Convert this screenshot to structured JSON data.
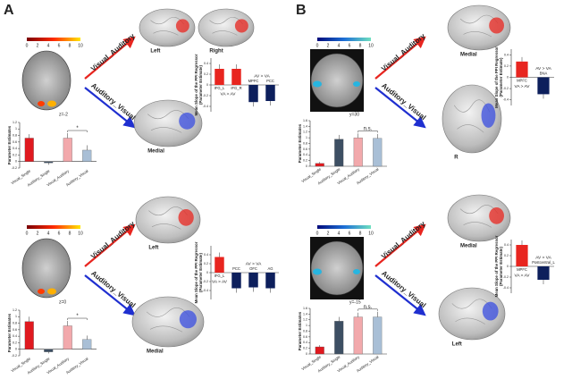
{
  "figure": {
    "panels": [
      "A",
      "B"
    ],
    "sections": [
      {
        "colorbar_ticks": [
          0,
          2,
          4,
          6,
          8,
          10
        ],
        "slice": "z=-2",
        "arrows": [
          "Visual_Auditory",
          "Auditory_Visual"
        ],
        "views": [
          "Left",
          "Right",
          "Medial"
        ]
      },
      {
        "colorbar_ticks": [
          0,
          2,
          4,
          6,
          8,
          10
        ],
        "slice": "z=0",
        "arrows": [
          "Visual_Auditory",
          "Auditory_Visual"
        ],
        "views": [
          "Left",
          "Medial"
        ]
      },
      {
        "colorbar_ticks": [
          0,
          2,
          4,
          6,
          8,
          10
        ],
        "slice": "y=30",
        "arrows": [
          "Visual_Auditory",
          "Auditory_Visual"
        ],
        "views": [
          "Medial",
          "R"
        ]
      },
      {
        "colorbar_ticks": [
          0,
          2,
          4,
          6,
          8,
          10
        ],
        "slice": "y=-15",
        "arrows": [
          "Visual_Auditory",
          "Auditory_Visual"
        ],
        "views": [
          "Medial",
          "Left"
        ]
      }
    ]
  },
  "chart_data": [
    {
      "type": "bar",
      "ylabel": [
        "Parameter Estimates"
      ],
      "categories": [
        "Visual_Single",
        "Auditory_Single",
        "Visual_Auditory",
        "Auditory_Visual"
      ],
      "values": [
        0.72,
        -0.04,
        0.72,
        0.35
      ],
      "errors": [
        0.12,
        0.06,
        0.15,
        0.15
      ],
      "colors": [
        "#e0191f",
        "#3d4f63",
        "#f2a9ac",
        "#a9bfd6"
      ],
      "ylim": [
        -0.2,
        1.2
      ],
      "yticks": [
        -0.2,
        0,
        0.2,
        0.4,
        0.6,
        0.8,
        1,
        1.2
      ],
      "annotation": "*"
    },
    {
      "type": "grouped",
      "ylabel": [
        "Mean Slope of the PPI Regressor",
        "(Parameter Estimate)"
      ],
      "categories": [
        "IFG_L",
        "IFG_R",
        "MPFC",
        "PCC"
      ],
      "series": [
        {
          "name": "VA > AV",
          "color": "#e8251f",
          "values": [
            0.3,
            0.3,
            null,
            null
          ]
        },
        {
          "name": "AV > VA",
          "color": "#0d1f5c",
          "values": [
            null,
            null,
            -0.32,
            -0.3
          ]
        }
      ],
      "ylim": [
        -0.5,
        0.5
      ],
      "yticks": [
        -0.4,
        -0.2,
        0,
        0.2,
        0.4
      ]
    },
    {
      "type": "bar",
      "ylabel": [
        "Parameter Estimates"
      ],
      "categories": [
        "Visual_Single",
        "Auditory_Single",
        "Visual_Auditory",
        "Auditory_Visual"
      ],
      "values": [
        0.85,
        -0.08,
        0.72,
        0.3
      ],
      "errors": [
        0.15,
        0.05,
        0.15,
        0.12
      ],
      "colors": [
        "#e0191f",
        "#3d4f63",
        "#f2a9ac",
        "#a9bfd6"
      ],
      "ylim": [
        -0.2,
        1.2
      ],
      "yticks": [
        -0.2,
        0,
        0.2,
        0.4,
        0.6,
        0.8,
        1,
        1.2
      ],
      "annotation": "*"
    },
    {
      "type": "grouped",
      "ylabel": [
        "Mean Slope of the PPI Regressor",
        "(Parameter Estimate)"
      ],
      "categories": [
        "IFG_L",
        "PCC",
        "OFC",
        "AG"
      ],
      "series": [
        {
          "name": "VA > AV",
          "color": "#e8251f",
          "values": [
            0.35,
            null,
            null,
            null
          ]
        },
        {
          "name": "AV > VA",
          "color": "#0d1f5c",
          "values": [
            null,
            -0.35,
            -0.33,
            -0.35
          ]
        }
      ],
      "ylim": [
        -0.6,
        0.6
      ],
      "yticks": [
        -0.4,
        -0.2,
        0,
        0.2,
        0.4
      ]
    },
    {
      "type": "bar",
      "ylabel": [
        "Parameter Estimates"
      ],
      "categories": [
        "Visual_Single",
        "Auditory_Single",
        "Visual_Auditory",
        "Auditory_Visual"
      ],
      "values": [
        0.1,
        0.95,
        1.0,
        0.98
      ],
      "errors": [
        0.05,
        0.15,
        0.15,
        0.15
      ],
      "colors": [
        "#e0191f",
        "#3d4f63",
        "#f2a9ac",
        "#a9bfd6"
      ],
      "ylim": [
        0,
        1.6
      ],
      "yticks": [
        0,
        0.2,
        0.4,
        0.6,
        0.8,
        1,
        1.2,
        1.4,
        1.6
      ],
      "annotation": "n.s."
    },
    {
      "type": "grouped",
      "ylabel": [
        "Mean Slope of the PPI Regressor",
        "(Parameter Estimate)"
      ],
      "categories": [
        "MPFC",
        "BNA"
      ],
      "series": [
        {
          "name": "VA > AV",
          "color": "#e8251f",
          "values": [
            0.28,
            null
          ]
        },
        {
          "name": "AV > VA",
          "color": "#0d1f5c",
          "values": [
            null,
            -0.3
          ]
        }
      ],
      "ylim": [
        -0.5,
        0.5
      ],
      "yticks": [
        -0.4,
        -0.2,
        0,
        0.2,
        0.4
      ]
    },
    {
      "type": "bar",
      "ylabel": [
        "Parameter Estimates"
      ],
      "categories": [
        "Visual_Single",
        "Auditory_Single",
        "Visual_Auditory",
        "Auditory_Visual"
      ],
      "values": [
        0.25,
        1.15,
        1.3,
        1.3
      ],
      "errors": [
        0.06,
        0.15,
        0.15,
        0.18
      ],
      "colors": [
        "#e0191f",
        "#3d4f63",
        "#f2a9ac",
        "#a9bfd6"
      ],
      "ylim": [
        0,
        1.6
      ],
      "yticks": [
        0,
        0.2,
        0.4,
        0.6,
        0.8,
        1,
        1.2,
        1.4,
        1.6
      ],
      "annotation": "n.s."
    },
    {
      "type": "grouped",
      "ylabel": [
        "Mean Slope of the PPI Regressor",
        "(Parameter Estimate)"
      ],
      "categories": [
        "MPFC",
        "Postcentral_L"
      ],
      "series": [
        {
          "name": "VA > AV",
          "color": "#e8251f",
          "values": [
            0.4,
            null
          ]
        },
        {
          "name": "AV > VA",
          "color": "#0d1f5c",
          "values": [
            null,
            -0.25
          ]
        }
      ],
      "ylim": [
        -0.5,
        0.5
      ],
      "yticks": [
        -0.4,
        -0.2,
        0,
        0.2,
        0.4
      ]
    }
  ]
}
